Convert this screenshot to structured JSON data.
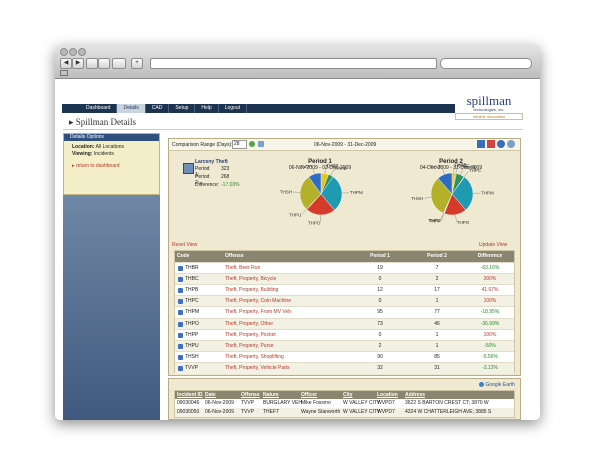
{
  "nav": {
    "tabs": [
      "Dashboard",
      "Details",
      "CAD",
      "Setup",
      "Help",
      "Logout"
    ]
  },
  "logo": {
    "name": "spillman",
    "sub": "technologies, inc.",
    "tagline": "reliable innovation"
  },
  "page_title": "Spillman Details",
  "sidebar": {
    "header": "Details Options",
    "location_label": "Location:",
    "location": "All Locations",
    "viewing_label": "Viewing:",
    "viewing": "Incidents",
    "link": "return to dashboard"
  },
  "toolbar": {
    "label": "Comparison Range (Days):",
    "days": "28",
    "range": "06-Nov-2009 - 31-Dec-2009"
  },
  "summary": {
    "title": "Larceny Theft",
    "rows": [
      [
        "Period 1:",
        "323"
      ],
      [
        "Period 2:",
        "268"
      ],
      [
        "Difference:",
        "-17.03%"
      ]
    ]
  },
  "period1": {
    "title": "Period 1",
    "range": "06-Nov-2009 - 03-Dec-2009"
  },
  "period2": {
    "title": "Period 2",
    "range": "04-Dec-2009 - 31-Dec-2009"
  },
  "links": {
    "reset": "Reset View",
    "update": "Update View"
  },
  "table": {
    "header": [
      "Code",
      "Offense",
      "Period 1",
      "Period 2",
      "Difference"
    ],
    "rows": [
      [
        "THBR",
        "Theft, Beer Run",
        19,
        7,
        "-63.16%"
      ],
      [
        "THBC",
        "Theft, Property, Bicycle",
        0,
        2,
        "200%"
      ],
      [
        "THPB",
        "Theft, Property, Building",
        12,
        17,
        "41.67%"
      ],
      [
        "THPC",
        "Theft, Property, Coin Machine",
        0,
        1,
        "100%"
      ],
      [
        "THPM",
        "Theft, Property, From MV Veh",
        95,
        77,
        "-18.95%"
      ],
      [
        "THPO",
        "Theft, Property, Other",
        73,
        46,
        "-36.99%"
      ],
      [
        "THPP",
        "Theft, Property, Pocket",
        0,
        1,
        "100%"
      ],
      [
        "THPU",
        "Theft, Property, Purse",
        2,
        1,
        "-50%"
      ],
      [
        "THSH",
        "Theft, Property, Shoplifting",
        90,
        85,
        "-5.56%"
      ],
      [
        "TVVP",
        "Theft, Property, Vehicle Parts",
        32,
        31,
        "-3.12%"
      ]
    ]
  },
  "incidents": {
    "link": "Google Earth",
    "header": [
      "Incident ID",
      "Date",
      "Offense",
      "Nature",
      "Officer",
      "City",
      "Location",
      "Address"
    ],
    "rows": [
      [
        "09030046",
        "06-Nov-2009",
        "TVVP",
        "BURGLARY VEH",
        "Mike Fossmo",
        "W VALLEY CITY",
        "WVPD7",
        "3622 S BARTON CREST CT; 3870 W"
      ],
      [
        "09030050",
        "06-Nov-2009",
        "TVVP",
        "THEFT",
        "Wayne Stanworth",
        "W VALLEY CITY",
        "WVPD7",
        "4324 W CHATTERLEIGH AVE; 3885 S"
      ]
    ]
  }
}
